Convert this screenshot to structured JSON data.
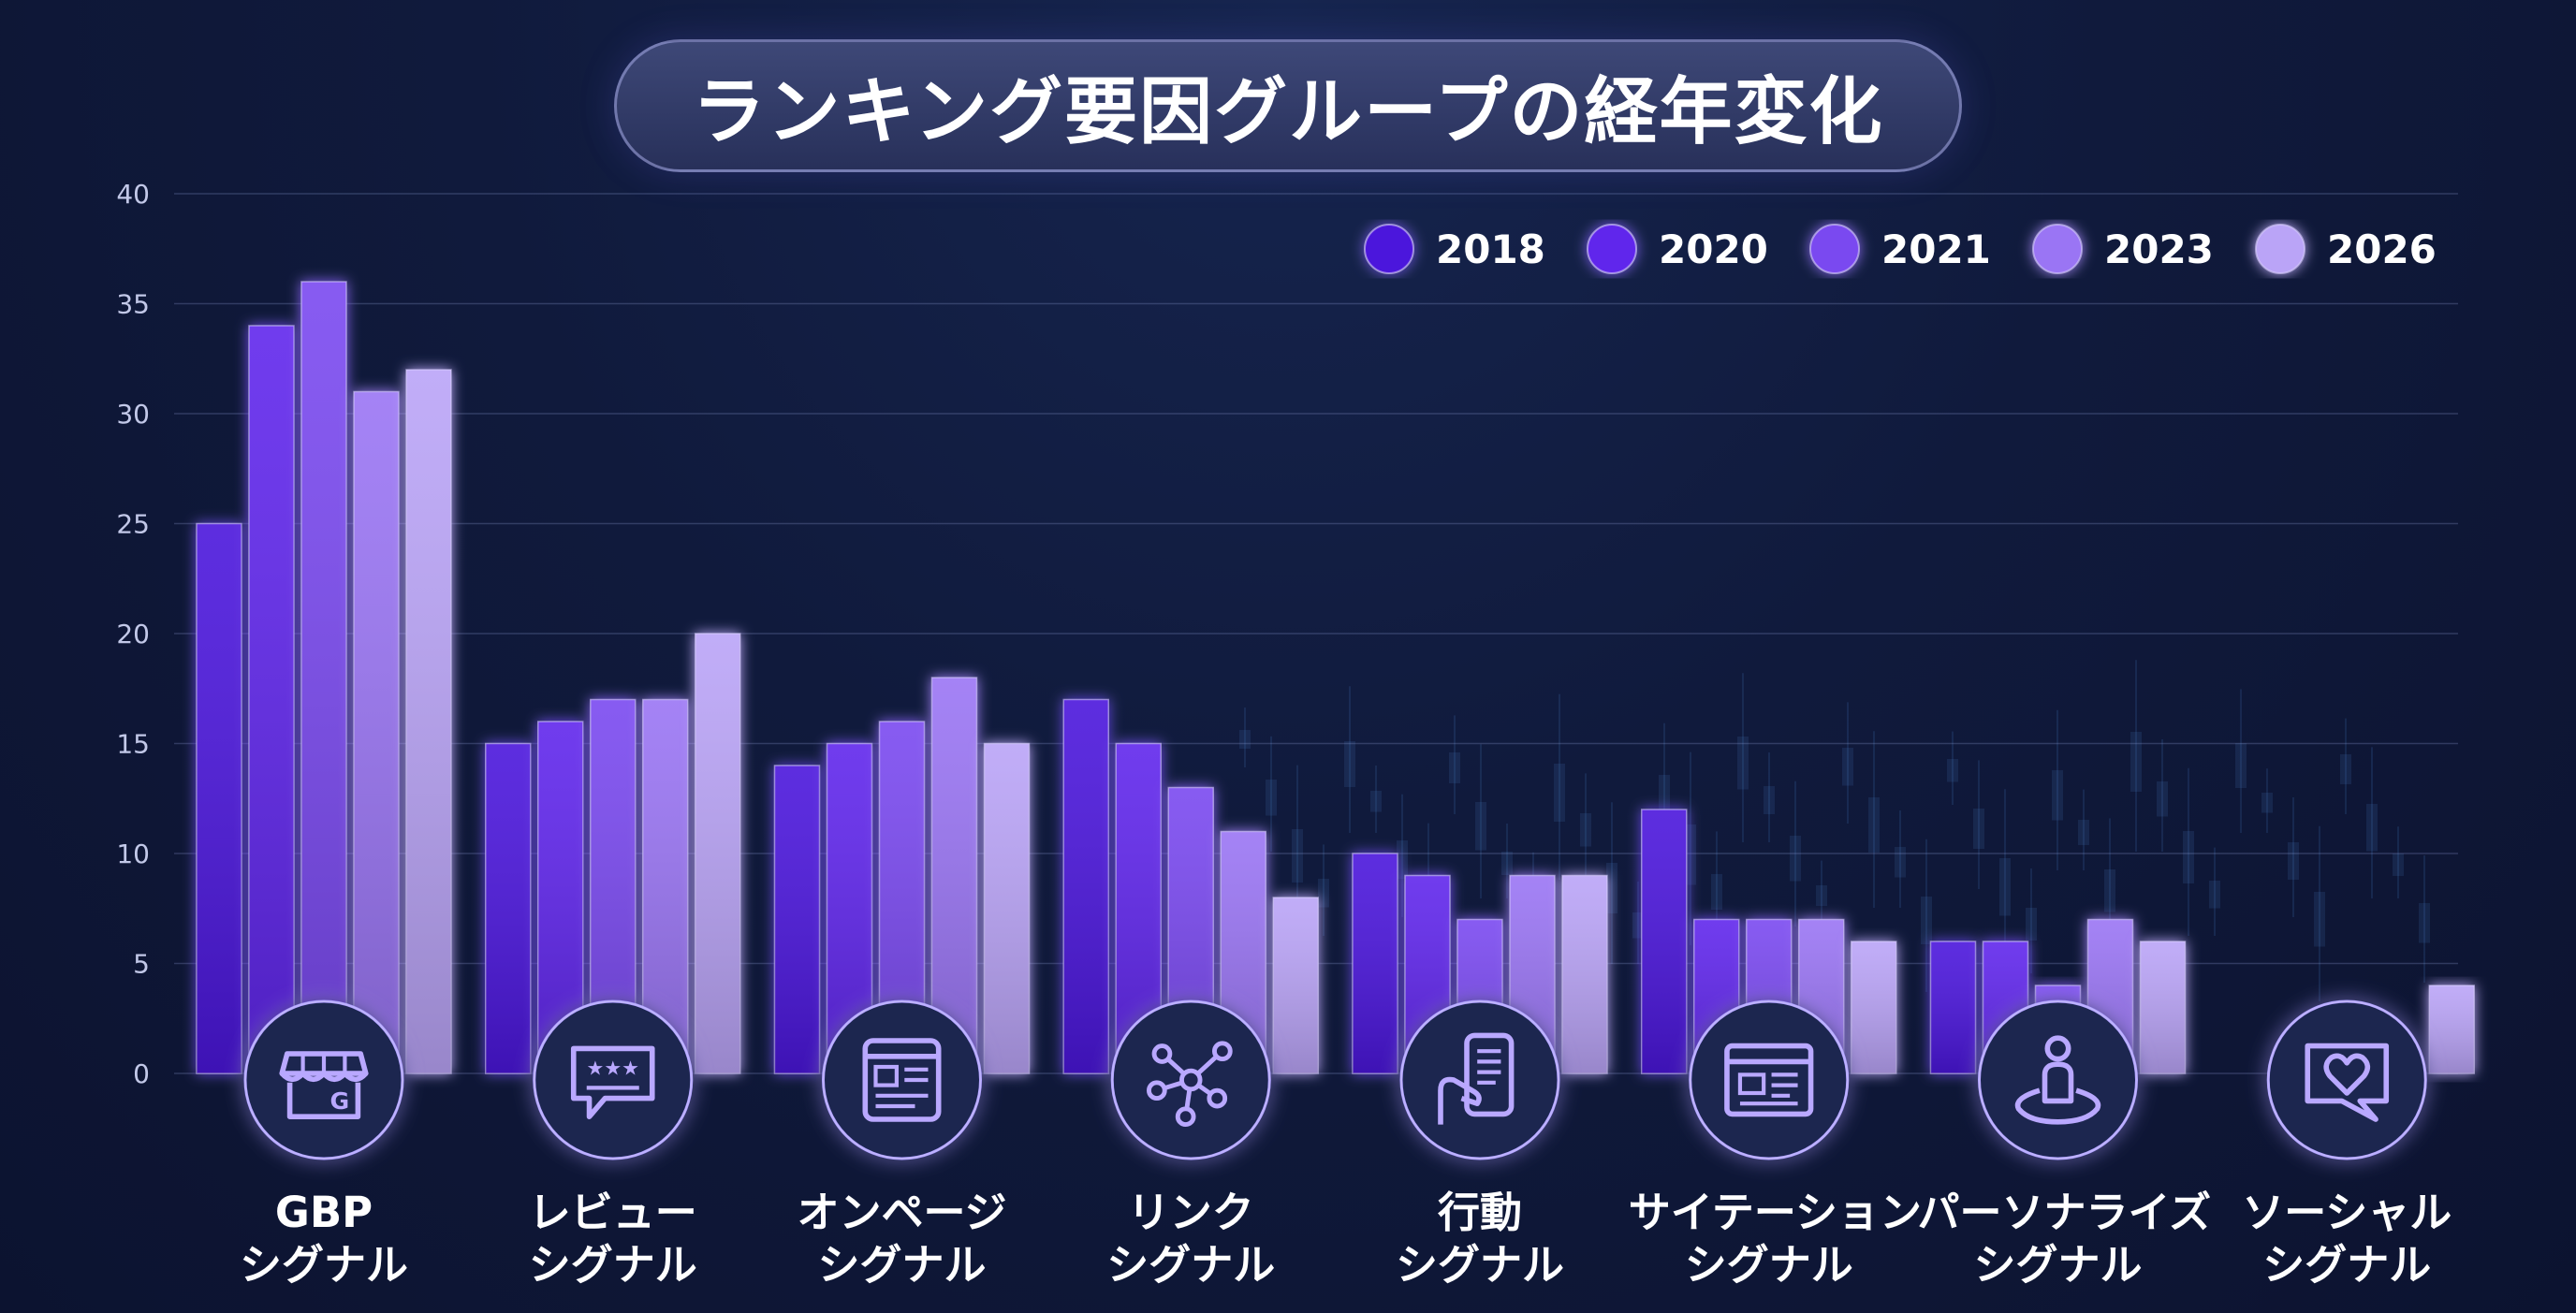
{
  "chart_data": {
    "type": "bar",
    "title": "ランキング要因グループの経年変化",
    "xlabel": "",
    "ylabel": "",
    "ylim": [
      0,
      40
    ],
    "yticks": [
      0,
      5,
      10,
      15,
      20,
      25,
      30,
      35,
      40
    ],
    "grid": true,
    "legend_position": "top-right",
    "categories": [
      {
        "line1": "GBP",
        "line2": "シグナル",
        "icon": "storefront-icon"
      },
      {
        "line1": "レビュー",
        "line2": "シグナル",
        "icon": "review-stars-icon"
      },
      {
        "line1": "オンページ",
        "line2": "シグナル",
        "icon": "webpage-icon"
      },
      {
        "line1": "リンク",
        "line2": "シグナル",
        "icon": "network-link-icon"
      },
      {
        "line1": "行動",
        "line2": "シグナル",
        "icon": "phone-hand-icon"
      },
      {
        "line1": "サイテーション",
        "line2": "シグナル",
        "icon": "citation-listing-icon"
      },
      {
        "line1": "パーソナライズ",
        "line2": "シグナル",
        "icon": "person-location-icon"
      },
      {
        "line1": "ソーシャル",
        "line2": "シグナル",
        "icon": "heart-chat-icon"
      }
    ],
    "series": [
      {
        "name": "2018",
        "color": "#4b12dc",
        "values": [
          25,
          15,
          14,
          17,
          10,
          12,
          6,
          0
        ]
      },
      {
        "name": "2020",
        "color": "#6128ec",
        "values": [
          34,
          16,
          15,
          15,
          9,
          7,
          6,
          0
        ]
      },
      {
        "name": "2021",
        "color": "#7a48f0",
        "values": [
          36,
          17,
          16,
          13,
          7,
          7,
          4,
          0
        ]
      },
      {
        "name": "2023",
        "color": "#9a74f4",
        "values": [
          31,
          17,
          18,
          11,
          9,
          7,
          7,
          0
        ]
      },
      {
        "name": "2026",
        "color": "#baa4f7",
        "values": [
          32,
          20,
          15,
          8,
          9,
          6,
          6,
          4
        ]
      }
    ]
  }
}
